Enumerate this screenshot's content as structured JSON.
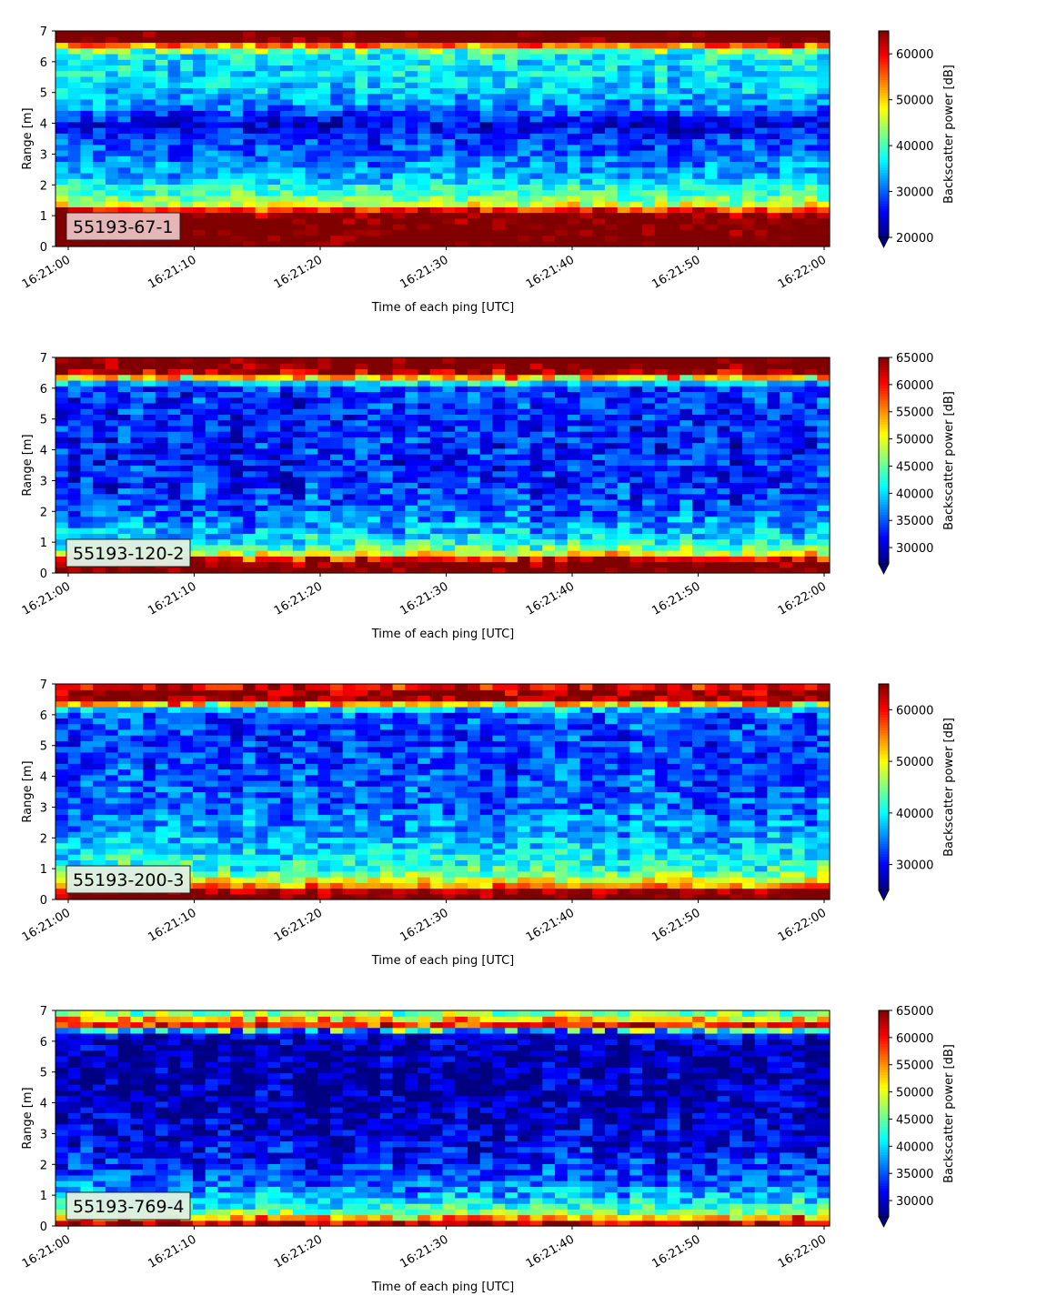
{
  "chart_data": [
    {
      "type": "heatmap",
      "label": "55193-67-1",
      "xlabel": "Time of each ping [UTC]",
      "ylabel": "Range [m]",
      "xticks": [
        "16:21:00",
        "16:21:10",
        "16:21:20",
        "16:21:30",
        "16:21:40",
        "16:21:50",
        "16:22:00"
      ],
      "yticks": [
        0,
        1,
        2,
        3,
        4,
        5,
        6,
        7
      ],
      "ylim": [
        0,
        7
      ],
      "colorbar": {
        "label": "Backscatter power [dB]",
        "min": 20000,
        "max": 65000,
        "ticks": [
          20000,
          30000,
          40000,
          50000,
          60000
        ],
        "extend": "min",
        "colormap": "jet"
      },
      "profile": [
        {
          "y": 0.05,
          "v": 68000
        },
        {
          "y": 0.3,
          "v": 67000
        },
        {
          "y": 1.0,
          "v": 66000
        },
        {
          "y": 1.15,
          "v": 61000
        },
        {
          "y": 1.25,
          "v": 55000
        },
        {
          "y": 1.4,
          "v": 45000
        },
        {
          "y": 1.7,
          "v": 40000
        },
        {
          "y": 2.0,
          "v": 38000
        },
        {
          "y": 2.3,
          "v": 33000
        },
        {
          "y": 3.0,
          "v": 30000
        },
        {
          "y": 3.5,
          "v": 28000
        },
        {
          "y": 4.0,
          "v": 24000
        },
        {
          "y": 4.5,
          "v": 31000
        },
        {
          "y": 5.2,
          "v": 35000
        },
        {
          "y": 6.0,
          "v": 36000
        },
        {
          "y": 6.3,
          "v": 37000
        },
        {
          "y": 6.55,
          "v": 55000
        },
        {
          "y": 6.7,
          "v": 67000
        },
        {
          "y": 7.0,
          "v": 68000
        }
      ]
    },
    {
      "type": "heatmap",
      "label": "55193-120-2",
      "xlabel": "Time of each ping [UTC]",
      "ylabel": "Range [m]",
      "xticks": [
        "16:21:00",
        "16:21:10",
        "16:21:20",
        "16:21:30",
        "16:21:40",
        "16:21:50",
        "16:22:00"
      ],
      "yticks": [
        0,
        1,
        2,
        3,
        4,
        5,
        6,
        7
      ],
      "ylim": [
        0,
        7
      ],
      "colorbar": {
        "label": "Backscatter power [dB]",
        "min": 27000,
        "max": 65000,
        "ticks": [
          30000,
          35000,
          40000,
          45000,
          50000,
          55000,
          60000,
          65000
        ],
        "extend": "min",
        "colormap": "jet"
      },
      "profile": [
        {
          "y": 0.05,
          "v": 67000
        },
        {
          "y": 0.4,
          "v": 66000
        },
        {
          "y": 0.55,
          "v": 55000
        },
        {
          "y": 0.7,
          "v": 48000
        },
        {
          "y": 0.9,
          "v": 43000
        },
        {
          "y": 1.3,
          "v": 39000
        },
        {
          "y": 2.0,
          "v": 35000
        },
        {
          "y": 3.0,
          "v": 33000
        },
        {
          "y": 4.0,
          "v": 33000
        },
        {
          "y": 5.0,
          "v": 33000
        },
        {
          "y": 6.0,
          "v": 34000
        },
        {
          "y": 6.2,
          "v": 40000
        },
        {
          "y": 6.45,
          "v": 60000
        },
        {
          "y": 6.65,
          "v": 67000
        },
        {
          "y": 7.0,
          "v": 67000
        }
      ]
    },
    {
      "type": "heatmap",
      "label": "55193-200-3",
      "xlabel": "Time of each ping [UTC]",
      "ylabel": "Range [m]",
      "xticks": [
        "16:21:00",
        "16:21:10",
        "16:21:20",
        "16:21:30",
        "16:21:40",
        "16:21:50",
        "16:22:00"
      ],
      "yticks": [
        0,
        1,
        2,
        3,
        4,
        5,
        6,
        7
      ],
      "ylim": [
        0,
        7
      ],
      "colorbar": {
        "label": "Backscatter power [dB]",
        "min": 25000,
        "max": 65000,
        "ticks": [
          30000,
          40000,
          50000,
          60000
        ],
        "extend": "min",
        "colormap": "jet"
      },
      "profile": [
        {
          "y": 0.05,
          "v": 67000
        },
        {
          "y": 0.3,
          "v": 64000
        },
        {
          "y": 0.45,
          "v": 55000
        },
        {
          "y": 0.7,
          "v": 47000
        },
        {
          "y": 1.0,
          "v": 42000
        },
        {
          "y": 1.5,
          "v": 39000
        },
        {
          "y": 2.0,
          "v": 37000
        },
        {
          "y": 3.0,
          "v": 34000
        },
        {
          "y": 4.0,
          "v": 33000
        },
        {
          "y": 5.0,
          "v": 32000
        },
        {
          "y": 6.0,
          "v": 33000
        },
        {
          "y": 6.25,
          "v": 40000
        },
        {
          "y": 6.45,
          "v": 62000
        },
        {
          "y": 6.7,
          "v": 66000
        },
        {
          "y": 6.85,
          "v": 60000
        },
        {
          "y": 7.0,
          "v": 62000
        }
      ]
    },
    {
      "type": "heatmap",
      "label": "55193-769-4",
      "xlabel": "Time of each ping [UTC]",
      "ylabel": "Range [m]",
      "xticks": [
        "16:21:00",
        "16:21:10",
        "16:21:20",
        "16:21:30",
        "16:21:40",
        "16:21:50",
        "16:22:00"
      ],
      "yticks": [
        0,
        1,
        2,
        3,
        4,
        5,
        6,
        7
      ],
      "ylim": [
        0,
        7
      ],
      "colorbar": {
        "label": "Backscatter power [dB]",
        "min": 27000,
        "max": 65000,
        "ticks": [
          30000,
          35000,
          40000,
          45000,
          50000,
          55000,
          60000,
          65000
        ],
        "extend": "min",
        "colormap": "jet"
      },
      "profile": [
        {
          "y": 0.05,
          "v": 64000
        },
        {
          "y": 0.2,
          "v": 60000
        },
        {
          "y": 0.35,
          "v": 48000
        },
        {
          "y": 0.6,
          "v": 43000
        },
        {
          "y": 1.0,
          "v": 38000
        },
        {
          "y": 1.5,
          "v": 35000
        },
        {
          "y": 2.0,
          "v": 33000
        },
        {
          "y": 3.0,
          "v": 30000
        },
        {
          "y": 4.0,
          "v": 29000
        },
        {
          "y": 5.0,
          "v": 28500
        },
        {
          "y": 6.0,
          "v": 29000
        },
        {
          "y": 6.3,
          "v": 32000
        },
        {
          "y": 6.45,
          "v": 55000
        },
        {
          "y": 6.6,
          "v": 63000
        },
        {
          "y": 6.75,
          "v": 50000
        },
        {
          "y": 7.0,
          "v": 44000
        }
      ]
    }
  ]
}
